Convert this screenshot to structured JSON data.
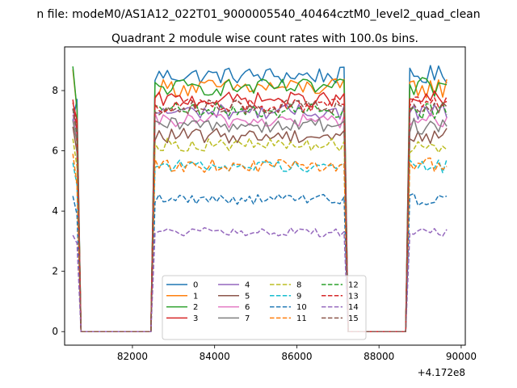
{
  "suptitle": "n file: modeM0/AS1A12_022T01_9000005540_40464cztM0_level2_quad_clean",
  "chart_data": {
    "type": "line",
    "title": "Quadrant 2 module wise count rates with 100.0s bins.",
    "xlabel": "",
    "ylabel": "",
    "offset_text": "+4.172e8",
    "xlim": [
      80350,
      90100
    ],
    "ylim": [
      -0.45,
      9.45
    ],
    "xticks": [
      82000,
      84000,
      86000,
      88000,
      90000
    ],
    "xtick_labels": [
      "82000",
      "84000",
      "86000",
      "88000",
      "90000"
    ],
    "yticks": [
      0,
      2,
      4,
      6,
      8
    ],
    "ytick_labels": [
      "0",
      "2",
      "4",
      "6",
      "8"
    ],
    "grid": false,
    "legend": {
      "placement": "lower-center",
      "columns": 4
    },
    "gtis": [
      [
        80550,
        80650
      ],
      [
        82550,
        87150
      ],
      [
        88750,
        89650
      ]
    ],
    "gap_ends": [
      82450,
      88650
    ],
    "series": [
      {
        "name": "0",
        "level": 8.5,
        "start": 7.0,
        "noise": 0.28,
        "color": "#1f77b4",
        "dash": "solid"
      },
      {
        "name": "1",
        "level": 8.1,
        "start": 8.7,
        "noise": 0.3,
        "color": "#ff7f0e",
        "dash": "solid"
      },
      {
        "name": "2",
        "level": 8.1,
        "start": 8.8,
        "noise": 0.28,
        "color": "#2ca02c",
        "dash": "solid"
      },
      {
        "name": "3",
        "level": 7.7,
        "start": 7.6,
        "noise": 0.25,
        "color": "#d62728",
        "dash": "solid"
      },
      {
        "name": "4",
        "level": 7.3,
        "start": 7.4,
        "noise": 0.25,
        "color": "#9467bd",
        "dash": "solid"
      },
      {
        "name": "5",
        "level": 6.5,
        "start": 6.8,
        "noise": 0.25,
        "color": "#8c564b",
        "dash": "solid"
      },
      {
        "name": "6",
        "level": 7.0,
        "start": 7.2,
        "noise": 0.25,
        "color": "#e377c2",
        "dash": "solid"
      },
      {
        "name": "7",
        "level": 6.85,
        "start": 7.0,
        "noise": 0.25,
        "color": "#7f7f7f",
        "dash": "solid"
      },
      {
        "name": "8",
        "level": 6.2,
        "start": 6.4,
        "noise": 0.22,
        "color": "#bcbd22",
        "dash": "dashed"
      },
      {
        "name": "9",
        "level": 5.5,
        "start": 5.6,
        "noise": 0.2,
        "color": "#17becf",
        "dash": "dashed"
      },
      {
        "name": "10",
        "level": 4.4,
        "start": 4.5,
        "noise": 0.18,
        "color": "#1f77b4",
        "dash": "dashed"
      },
      {
        "name": "11",
        "level": 5.5,
        "start": 5.9,
        "noise": 0.22,
        "color": "#ff7f0e",
        "dash": "dashed"
      },
      {
        "name": "12",
        "level": 7.35,
        "start": 7.4,
        "noise": 0.25,
        "color": "#2ca02c",
        "dash": "dashed"
      },
      {
        "name": "13",
        "level": 7.5,
        "start": 7.7,
        "noise": 0.25,
        "color": "#d62728",
        "dash": "dashed"
      },
      {
        "name": "14",
        "level": 3.3,
        "start": 3.2,
        "noise": 0.15,
        "color": "#9467bd",
        "dash": "dashed"
      },
      {
        "name": "15",
        "level": 7.45,
        "start": 7.4,
        "noise": 0.25,
        "color": "#8c564b",
        "dash": "dashed"
      }
    ]
  }
}
